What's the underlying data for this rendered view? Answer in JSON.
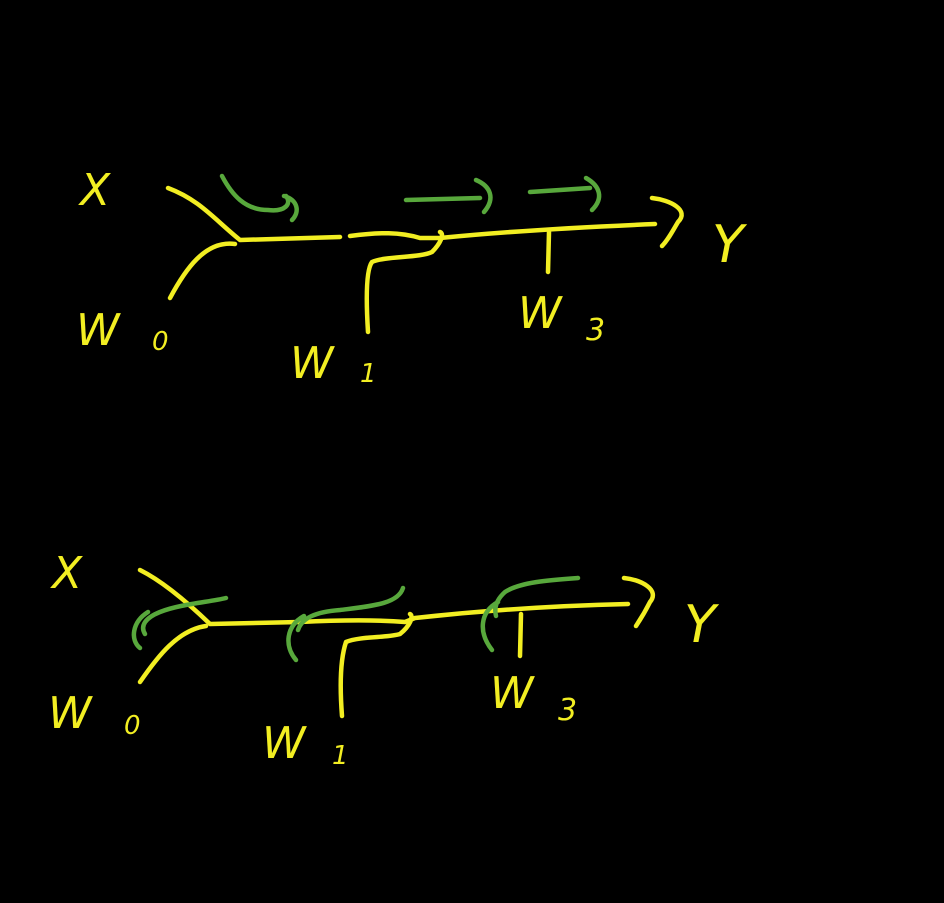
{
  "colors": {
    "background": "#000000",
    "forward_ink": "#f2ee22",
    "gradient_ink": "#58a83c"
  },
  "diagrams": [
    {
      "id": "forward-pass",
      "input_label": "X",
      "output_label": "Y",
      "weights": [
        "W",
        "W",
        "W"
      ],
      "weight_subscripts": [
        "0",
        "1",
        "3"
      ]
    },
    {
      "id": "backward-pass",
      "input_label": "X",
      "output_label": "Y",
      "weights": [
        "W",
        "W",
        "W"
      ],
      "weight_subscripts": [
        "0",
        "1",
        "3"
      ]
    }
  ]
}
